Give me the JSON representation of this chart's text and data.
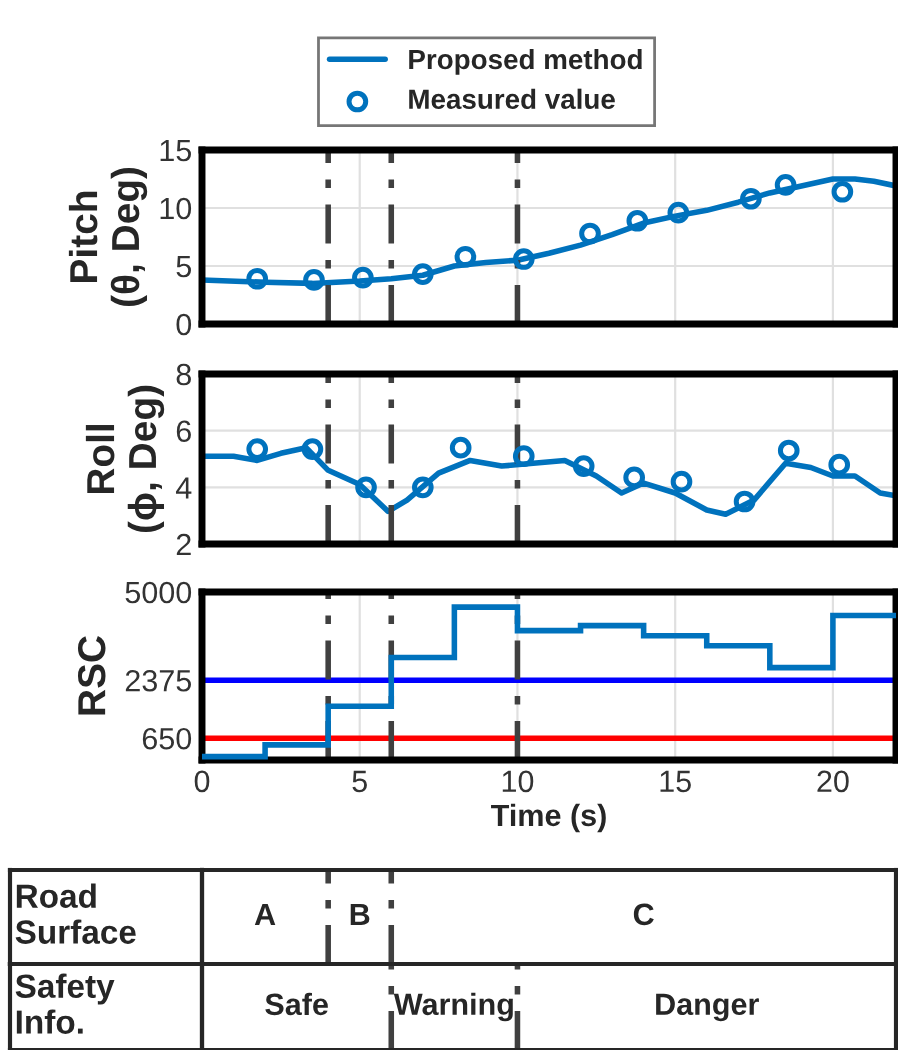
{
  "chart_data": [
    {
      "type": "line",
      "ylabel": "Pitch\n(θ, Deg)",
      "xlim": [
        0,
        22
      ],
      "xticks": [
        0,
        5,
        10,
        15,
        20
      ],
      "ylim": [
        0,
        15
      ],
      "yticks": [
        0,
        5,
        10,
        15
      ],
      "grid": true,
      "tick_labels": "y",
      "legend": "top",
      "series": [
        {
          "name": "Proposed method",
          "type": "line",
          "color": "#0072bd",
          "marker": "none",
          "line_style": "solid",
          "x": [
            0,
            2,
            3.5,
            5,
            6,
            7,
            8,
            9,
            10,
            11,
            12,
            13,
            14,
            15,
            16,
            17,
            18,
            19,
            20,
            20.7,
            21.3,
            22
          ],
          "values": [
            3.8,
            3.6,
            3.5,
            3.7,
            3.9,
            4.2,
            5.0,
            5.3,
            5.5,
            6.1,
            6.8,
            7.7,
            8.7,
            9.3,
            9.8,
            10.5,
            11.3,
            11.9,
            12.5,
            12.5,
            12.3,
            11.9
          ]
        },
        {
          "name": "Measured value",
          "type": "scatter",
          "color": "#0072bd",
          "marker": "circle",
          "x": [
            1.75,
            3.55,
            5.1,
            7.0,
            8.35,
            10.2,
            12.3,
            13.8,
            15.1,
            17.4,
            18.5,
            20.3
          ],
          "values": [
            3.9,
            3.8,
            4.0,
            4.3,
            5.8,
            5.6,
            7.8,
            8.9,
            9.6,
            10.8,
            12.0,
            11.4
          ]
        }
      ],
      "ref_lines": [
        {
          "axis": "x",
          "value": 4,
          "color": "#404040",
          "line_style": "dashed"
        },
        {
          "axis": "x",
          "value": 6,
          "color": "#404040",
          "line_style": "dashed"
        },
        {
          "axis": "x",
          "value": 10,
          "color": "#404040",
          "line_style": "dashed"
        }
      ]
    },
    {
      "type": "line",
      "ylabel": "Roll\n(ϕ, Deg)",
      "xlim": [
        0,
        22
      ],
      "xticks": [
        0,
        5,
        10,
        15,
        20
      ],
      "ylim": [
        2,
        8
      ],
      "yticks": [
        2,
        4,
        6,
        8
      ],
      "grid": true,
      "tick_labels": "y",
      "series": [
        {
          "type": "line",
          "color": "#0072bd",
          "marker": "none",
          "line_style": "solid",
          "x": [
            0,
            1,
            1.75,
            2.5,
            3.3,
            4,
            5,
            5.9,
            6.5,
            7.5,
            8.5,
            9.5,
            10.5,
            11.5,
            12.5,
            13.3,
            14,
            15,
            16,
            16.6,
            17.5,
            18.5,
            19.3,
            20,
            20.7,
            21.5,
            22
          ],
          "values": [
            5.1,
            5.1,
            4.95,
            5.2,
            5.4,
            4.6,
            4.1,
            3.15,
            3.55,
            4.5,
            4.95,
            4.75,
            4.85,
            4.95,
            4.4,
            3.8,
            4.15,
            3.8,
            3.2,
            3.05,
            3.55,
            4.85,
            4.7,
            4.4,
            4.4,
            3.8,
            3.7
          ]
        },
        {
          "type": "scatter",
          "color": "#0072bd",
          "marker": "circle",
          "x": [
            1.75,
            3.5,
            5.2,
            7.0,
            8.2,
            10.2,
            12.1,
            13.7,
            15.2,
            17.2,
            18.6,
            20.2
          ],
          "values": [
            5.35,
            5.35,
            4.0,
            4.0,
            5.4,
            5.1,
            4.75,
            4.35,
            4.2,
            3.5,
            5.3,
            4.8
          ]
        }
      ],
      "ref_lines": [
        {
          "axis": "x",
          "value": 4,
          "color": "#404040",
          "line_style": "dashed"
        },
        {
          "axis": "x",
          "value": 6,
          "color": "#404040",
          "line_style": "dashed"
        },
        {
          "axis": "x",
          "value": 10,
          "color": "#404040",
          "line_style": "dashed"
        }
      ]
    },
    {
      "type": "step",
      "ylabel": "RSC",
      "xlabel": "Time (s)",
      "xlim": [
        0,
        22
      ],
      "xticks": [
        0,
        5,
        10,
        15,
        20
      ],
      "ylim": [
        0,
        5000
      ],
      "yticks": [
        650,
        2375,
        5000
      ],
      "grid": true,
      "series": [
        {
          "type": "step",
          "color": "#0072bd",
          "x": [
            0,
            2,
            4,
            6,
            8,
            10,
            12,
            14,
            16,
            18,
            20
          ],
          "values": [
            100,
            450,
            1600,
            3050,
            4550,
            3850,
            4000,
            3700,
            3400,
            2750,
            4300
          ]
        }
      ],
      "ref_lines": [
        {
          "axis": "y",
          "value": 650,
          "color": "#ff0000",
          "line_style": "solid"
        },
        {
          "axis": "y",
          "value": 2375,
          "color": "#0000ff",
          "line_style": "solid"
        },
        {
          "axis": "x",
          "value": 4,
          "color": "#404040",
          "line_style": "dashed"
        },
        {
          "axis": "x",
          "value": 6,
          "color": "#404040",
          "line_style": "dashed"
        },
        {
          "axis": "x",
          "value": 10,
          "color": "#404040",
          "line_style": "dashed"
        }
      ]
    },
    {
      "type": "other",
      "ylabel": "Road\nSurface",
      "annotations": [
        "A",
        "B",
        "C"
      ]
    },
    {
      "type": "other",
      "ylabel": "Safety\nInfo.",
      "annotations": [
        "Safe",
        "Warning",
        "Danger"
      ]
    }
  ]
}
